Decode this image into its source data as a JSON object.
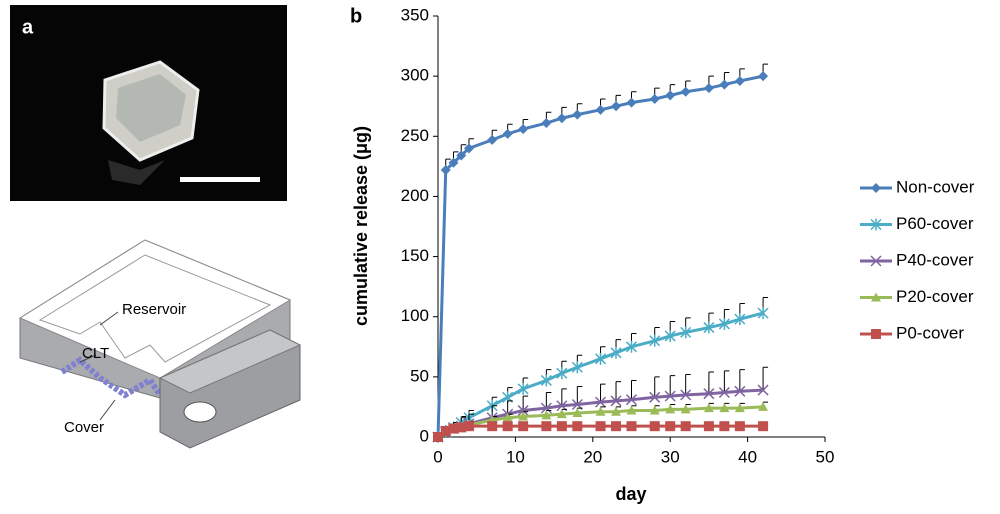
{
  "panel_a": {
    "label": "a",
    "diagram_labels": [
      "Reservoir",
      "CLT",
      "Cover"
    ]
  },
  "panel_b_label": "b",
  "chart_data": {
    "type": "line",
    "x_label": "day",
    "y_label": "cumulative release (μg)",
    "x": [
      0,
      1,
      2,
      3,
      4,
      7,
      9,
      11,
      14,
      16,
      18,
      21,
      23,
      25,
      28,
      30,
      32,
      35,
      37,
      39,
      42
    ],
    "xlim": [
      0,
      50
    ],
    "xticks": [
      0,
      10,
      20,
      30,
      40,
      50
    ],
    "ylim": [
      0,
      350
    ],
    "yticks": [
      0,
      50,
      100,
      150,
      200,
      250,
      300,
      350
    ],
    "legend": "right",
    "series": [
      {
        "name": "Non-cover",
        "color": "#4a7ebb",
        "marker": "diamond",
        "values": [
          0,
          222,
          228,
          234,
          240,
          247,
          252,
          256,
          261,
          265,
          268,
          272,
          275,
          278,
          281,
          284,
          287,
          290,
          293,
          296,
          300
        ],
        "errors": [
          0,
          9,
          9,
          9,
          8,
          8,
          8,
          8,
          9,
          9,
          9,
          9,
          9,
          9,
          9,
          9,
          9,
          10,
          10,
          10,
          10
        ]
      },
      {
        "name": "P60-cover",
        "color": "#4bacc6",
        "marker": "star",
        "values": [
          0,
          5,
          8,
          12,
          16,
          26,
          33,
          40,
          47,
          53,
          58,
          65,
          70,
          75,
          80,
          84,
          87,
          91,
          94,
          98,
          103
        ],
        "errors": [
          0,
          3,
          4,
          5,
          6,
          7,
          8,
          9,
          9,
          10,
          10,
          10,
          11,
          11,
          11,
          12,
          12,
          12,
          12,
          13,
          13
        ]
      },
      {
        "name": "P40-cover",
        "color": "#8064a2",
        "marker": "x",
        "values": [
          0,
          4,
          7,
          9,
          11,
          16,
          19,
          22,
          24,
          26,
          27,
          29,
          30,
          31,
          33,
          34,
          35,
          36,
          37,
          38,
          39
        ],
        "errors": [
          0,
          3,
          5,
          7,
          8,
          10,
          11,
          12,
          13,
          14,
          15,
          15,
          16,
          16,
          17,
          17,
          17,
          18,
          18,
          18,
          19
        ]
      },
      {
        "name": "P20-cover",
        "color": "#9bbb59",
        "marker": "triangle",
        "values": [
          0,
          4,
          7,
          9,
          10,
          14,
          16,
          17,
          18,
          19,
          20,
          21,
          21,
          22,
          22,
          23,
          23,
          24,
          24,
          24,
          25
        ],
        "errors": [
          0,
          1,
          2,
          2,
          3,
          3,
          3,
          4,
          4,
          4,
          4,
          4,
          4,
          4,
          4,
          4,
          4,
          4,
          4,
          4,
          4
        ]
      },
      {
        "name": "P0-cover",
        "color": "#c0504d",
        "marker": "square",
        "values": [
          0,
          5,
          7,
          8,
          9,
          9,
          9,
          9,
          9,
          9,
          9,
          9,
          9,
          9,
          9,
          9,
          9,
          9,
          9,
          9,
          9
        ],
        "errors": [
          0,
          1,
          1,
          1,
          1,
          1,
          1,
          1,
          1,
          1,
          1,
          1,
          1,
          1,
          1,
          1,
          1,
          1,
          1,
          1,
          1
        ]
      }
    ]
  }
}
